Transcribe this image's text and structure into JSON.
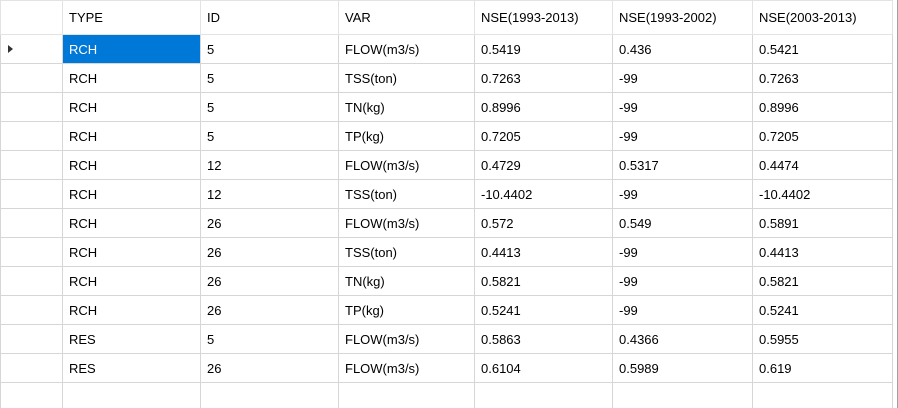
{
  "table": {
    "columns": [
      "TYPE",
      "ID",
      "VAR",
      "NSE(1993-2013)",
      "NSE(1993-2002)",
      "NSE(2003-2013)"
    ],
    "rows": [
      [
        "RCH",
        "5",
        "FLOW(m3/s)",
        "0.5419",
        "0.436",
        "0.5421"
      ],
      [
        "RCH",
        "5",
        "TSS(ton)",
        "0.7263",
        "-99",
        "0.7263"
      ],
      [
        "RCH",
        "5",
        "TN(kg)",
        "0.8996",
        "-99",
        "0.8996"
      ],
      [
        "RCH",
        "5",
        "TP(kg)",
        "0.7205",
        "-99",
        "0.7205"
      ],
      [
        "RCH",
        "12",
        "FLOW(m3/s)",
        "0.4729",
        "0.5317",
        "0.4474"
      ],
      [
        "RCH",
        "12",
        "TSS(ton)",
        "-10.4402",
        "-99",
        "-10.4402"
      ],
      [
        "RCH",
        "26",
        "FLOW(m3/s)",
        "0.572",
        "0.549",
        "0.5891"
      ],
      [
        "RCH",
        "26",
        "TSS(ton)",
        "0.4413",
        "-99",
        "0.4413"
      ],
      [
        "RCH",
        "26",
        "TN(kg)",
        "0.5821",
        "-99",
        "0.5821"
      ],
      [
        "RCH",
        "26",
        "TP(kg)",
        "0.5241",
        "-99",
        "0.5241"
      ],
      [
        "RES",
        "5",
        "FLOW(m3/s)",
        "0.5863",
        "0.4366",
        "0.5955"
      ],
      [
        "RES",
        "26",
        "FLOW(m3/s)",
        "0.6104",
        "0.5989",
        "0.619"
      ]
    ]
  }
}
